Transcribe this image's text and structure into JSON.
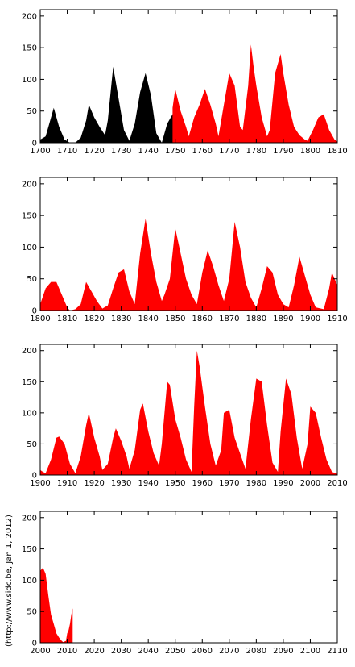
{
  "credit": "(http://www.sidc.be, Jan 1, 2012)",
  "colors": {
    "observed": "#ff0000",
    "reconstructed": "#000000",
    "axis": "#000000"
  },
  "chart_data": [
    {
      "type": "area",
      "title": "",
      "xlabel": "",
      "ylabel": "",
      "xlim": [
        1700,
        1810
      ],
      "ylim": [
        0,
        210
      ],
      "x_ticks": [
        1700,
        1710,
        1720,
        1730,
        1740,
        1750,
        1760,
        1770,
        1780,
        1790,
        1800,
        1810
      ],
      "y_ticks": [
        0,
        50,
        100,
        150,
        200
      ],
      "series": [
        {
          "color": "#000000",
          "x": [
            1700,
            1702,
            1703,
            1705,
            1707,
            1709,
            1711,
            1713,
            1715,
            1717,
            1718,
            1720,
            1722,
            1724,
            1725,
            1727,
            1729,
            1731,
            1733,
            1735,
            1737,
            1739,
            1741,
            1743,
            1745,
            1747,
            1749,
            1750
          ],
          "y": [
            5,
            10,
            25,
            55,
            25,
            5,
            0,
            0,
            8,
            35,
            60,
            40,
            25,
            12,
            35,
            120,
            70,
            20,
            3,
            30,
            80,
            110,
            75,
            15,
            0,
            30,
            45,
            55
          ]
        },
        {
          "color": "#ff0000",
          "x": [
            1749,
            1750,
            1752,
            1754,
            1755,
            1757,
            1759,
            1761,
            1763,
            1765,
            1766,
            1768,
            1770,
            1772,
            1774,
            1775,
            1777,
            1778,
            1779,
            1780,
            1782,
            1784,
            1785,
            1787,
            1789,
            1790,
            1792,
            1794,
            1796,
            1798,
            1799,
            1801,
            1803,
            1805,
            1807,
            1809,
            1810
          ],
          "y": [
            55,
            85,
            50,
            25,
            10,
            40,
            60,
            85,
            60,
            30,
            10,
            60,
            110,
            90,
            25,
            20,
            90,
            155,
            120,
            90,
            40,
            10,
            20,
            110,
            140,
            110,
            60,
            25,
            12,
            5,
            3,
            20,
            40,
            45,
            20,
            5,
            2
          ]
        }
      ]
    },
    {
      "type": "area",
      "title": "",
      "xlabel": "",
      "ylabel": "",
      "xlim": [
        1800,
        1910
      ],
      "ylim": [
        0,
        210
      ],
      "x_ticks": [
        1800,
        1810,
        1820,
        1830,
        1840,
        1850,
        1860,
        1870,
        1880,
        1890,
        1900,
        1910
      ],
      "y_ticks": [
        0,
        50,
        100,
        150,
        200
      ],
      "series": [
        {
          "color": "#ff0000",
          "x": [
            1800,
            1802,
            1804,
            1806,
            1808,
            1810,
            1811,
            1813,
            1815,
            1817,
            1819,
            1821,
            1823,
            1825,
            1827,
            1829,
            1831,
            1833,
            1835,
            1837,
            1839,
            1841,
            1843,
            1845,
            1846,
            1848,
            1850,
            1852,
            1854,
            1856,
            1858,
            1860,
            1862,
            1864,
            1866,
            1868,
            1870,
            1872,
            1874,
            1876,
            1878,
            1880,
            1882,
            1884,
            1886,
            1888,
            1890,
            1892,
            1894,
            1896,
            1898,
            1900,
            1902,
            1905,
            1907,
            1908,
            1910
          ],
          "y": [
            10,
            35,
            45,
            45,
            25,
            5,
            0,
            2,
            10,
            45,
            30,
            15,
            3,
            8,
            35,
            60,
            65,
            30,
            10,
            90,
            145,
            90,
            45,
            15,
            25,
            50,
            130,
            90,
            50,
            25,
            10,
            60,
            95,
            70,
            40,
            15,
            50,
            140,
            100,
            45,
            20,
            5,
            35,
            70,
            60,
            25,
            10,
            5,
            40,
            85,
            55,
            25,
            5,
            2,
            35,
            60,
            40
          ]
        }
      ]
    },
    {
      "type": "area",
      "title": "",
      "xlabel": "",
      "ylabel": "",
      "xlim": [
        1900,
        2010
      ],
      "ylim": [
        0,
        210
      ],
      "x_ticks": [
        1900,
        1910,
        1920,
        1930,
        1940,
        1950,
        1960,
        1970,
        1980,
        1990,
        2000,
        2010
      ],
      "y_ticks": [
        0,
        50,
        100,
        150,
        200
      ],
      "series": [
        {
          "color": "#ff0000",
          "x": [
            1900,
            1901,
            1902,
            1904,
            1906,
            1907,
            1909,
            1911,
            1913,
            1915,
            1917,
            1918,
            1920,
            1922,
            1923,
            1925,
            1927,
            1928,
            1930,
            1932,
            1933,
            1935,
            1937,
            1938,
            1940,
            1942,
            1944,
            1945,
            1947,
            1948,
            1950,
            1952,
            1954,
            1956,
            1957,
            1958,
            1959,
            1961,
            1963,
            1965,
            1967,
            1968,
            1970,
            1972,
            1974,
            1976,
            1978,
            1980,
            1982,
            1984,
            1986,
            1988,
            1989,
            1991,
            1993,
            1995,
            1997,
            1999,
            2000,
            2002,
            2004,
            2006,
            2008,
            2010
          ],
          "y": [
            8,
            5,
            3,
            25,
            60,
            62,
            50,
            18,
            3,
            30,
            80,
            100,
            60,
            30,
            8,
            18,
            60,
            75,
            55,
            30,
            10,
            40,
            105,
            115,
            70,
            35,
            15,
            50,
            150,
            145,
            90,
            60,
            25,
            5,
            110,
            200,
            175,
            110,
            50,
            15,
            40,
            100,
            105,
            60,
            35,
            10,
            90,
            155,
            150,
            80,
            20,
            5,
            70,
            155,
            130,
            60,
            10,
            50,
            110,
            100,
            60,
            25,
            5,
            2
          ]
        }
      ]
    },
    {
      "type": "area",
      "title": "",
      "xlabel": "",
      "ylabel": "",
      "xlim": [
        2000,
        2110
      ],
      "ylim": [
        0,
        210
      ],
      "x_ticks": [
        2000,
        2010,
        2020,
        2030,
        2040,
        2050,
        2060,
        2070,
        2080,
        2090,
        2100,
        2110
      ],
      "y_ticks": [
        0,
        50,
        100,
        150,
        200
      ],
      "series": [
        {
          "color": "#ff0000",
          "x": [
            2000,
            2001,
            2002,
            2003,
            2004,
            2005,
            2006,
            2007,
            2008,
            2008.5,
            2009,
            2009.5,
            2010,
            2010.5,
            2011,
            2011.5,
            2012
          ],
          "y": [
            115,
            120,
            110,
            75,
            45,
            30,
            15,
            8,
            3,
            1,
            2,
            3,
            15,
            20,
            30,
            45,
            55
          ]
        }
      ]
    }
  ]
}
